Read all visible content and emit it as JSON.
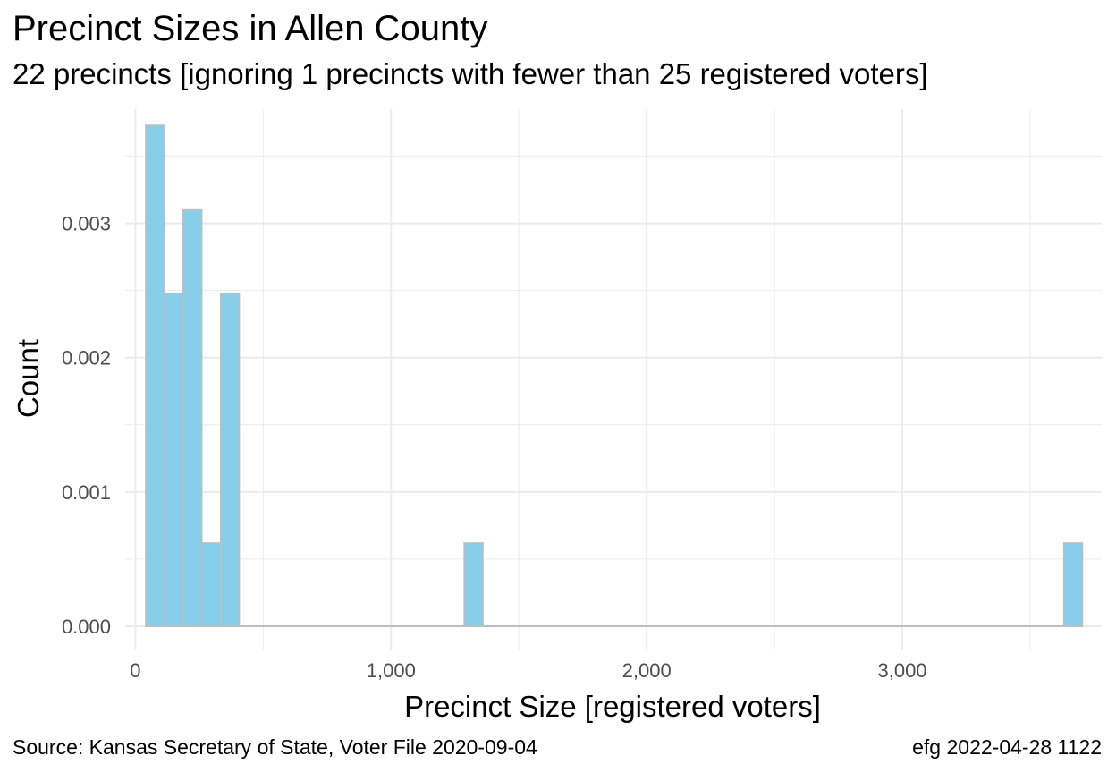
{
  "title": "Precinct Sizes in Allen County",
  "subtitle": "22 precincts [ignoring 1 precincts with fewer than 25 registered voters]",
  "caption_left": "Source:  Kansas Secretary of State, Voter File  2020-09-04",
  "caption_right": "efg 2022-04-28 1122",
  "colors": {
    "bar_fill": "#87ceeb",
    "bar_stroke": "#bebebe",
    "grid": "#ebebeb",
    "tick_text": "#4d4d4d"
  },
  "chart_data": {
    "type": "bar",
    "xlabel": "Precinct Size [registered voters]",
    "ylabel": "Count",
    "xlim": [
      -40,
      3780
    ],
    "ylim": [
      -0.00018,
      0.00385
    ],
    "x_ticks": [
      0,
      1000,
      2000,
      3000
    ],
    "x_tick_labels": [
      "0",
      "1,000",
      "2,000",
      "3,000"
    ],
    "y_ticks": [
      0.0,
      0.001,
      0.002,
      0.003
    ],
    "y_tick_labels": [
      "0.000",
      "0.001",
      "0.002",
      "0.003"
    ],
    "grid": true,
    "bin_width": 73.3,
    "bins": [
      {
        "start": 40.0,
        "end": 113.3,
        "value": 0.00373
      },
      {
        "start": 113.3,
        "end": 186.6,
        "value": 0.00248
      },
      {
        "start": 186.6,
        "end": 259.9,
        "value": 0.0031
      },
      {
        "start": 259.9,
        "end": 333.2,
        "value": 0.00062
      },
      {
        "start": 333.2,
        "end": 406.5,
        "value": 0.00248
      },
      {
        "start": 1286.1,
        "end": 1359.4,
        "value": 0.00062
      },
      {
        "start": 3631.7,
        "end": 3705.0,
        "value": 0.00062
      }
    ]
  }
}
